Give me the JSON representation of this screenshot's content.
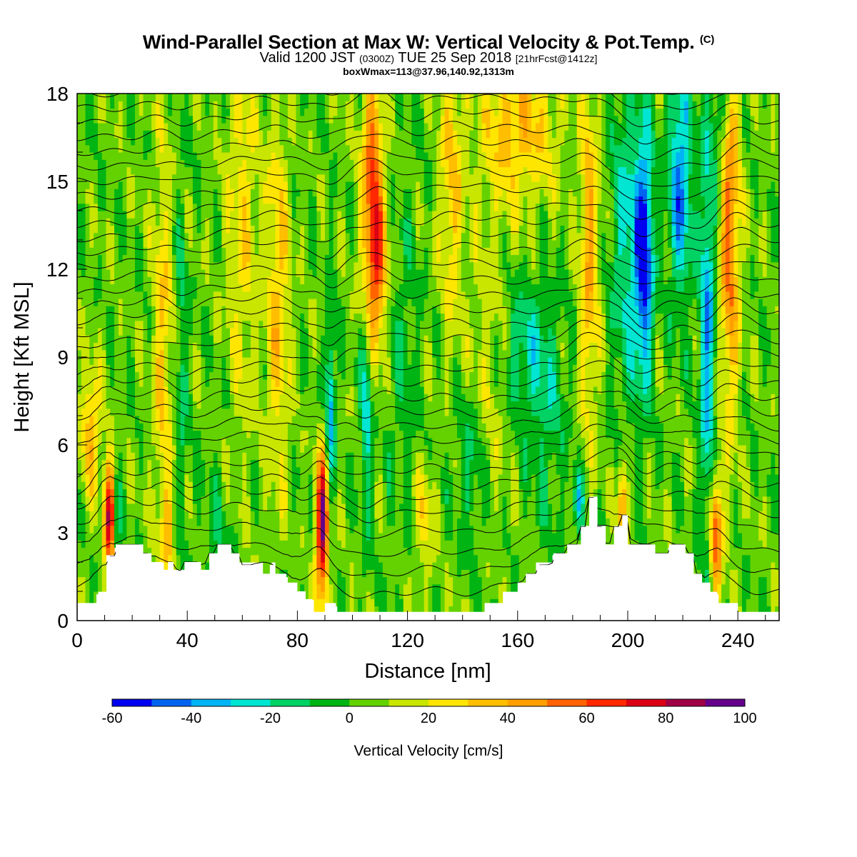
{
  "header": {
    "title": "Wind-Parallel Section at Max W: Vertical Velocity & Pot.Temp.",
    "title_mark": "(C)",
    "valid_time": "Valid 1200 JST",
    "utc_time": "(0300Z)",
    "date": "TUE 25 Sep 2018",
    "forecast_info": "[21hrFcst@1412z]",
    "box_info": "boxWmax=113@37.96,140.92,1313m"
  },
  "chart_data": {
    "type": "heatmap",
    "xlabel": "Distance [nm]",
    "ylabel": "Height [Kft MSL]",
    "xlim": [
      0,
      255
    ],
    "ylim": [
      0,
      18
    ],
    "x_ticks": [
      0,
      40,
      80,
      120,
      160,
      200,
      240
    ],
    "y_ticks": [
      0,
      3,
      6,
      9,
      12,
      15,
      18
    ],
    "colorbar": {
      "label": "Vertical Velocity [cm/s]",
      "levels": [
        -60,
        -50,
        -40,
        -30,
        -20,
        -10,
        0,
        10,
        20,
        30,
        40,
        50,
        60,
        70,
        80,
        90,
        100
      ],
      "tick_labels": [
        "-60",
        "-40",
        "-20",
        "0",
        "20",
        "40",
        "60",
        "80",
        "100"
      ],
      "tick_values": [
        -60,
        -40,
        -20,
        0,
        20,
        40,
        60,
        80,
        100
      ],
      "colors": [
        "#0000f0",
        "#0064f0",
        "#00b4f5",
        "#00e6d2",
        "#00d264",
        "#00b414",
        "#64d200",
        "#c8e600",
        "#ffe600",
        "#ffbe00",
        "#ffa000",
        "#ff6400",
        "#ff2800",
        "#dc0014",
        "#a00046",
        "#64008c"
      ]
    },
    "background_w": 4,
    "terrain_kft": [
      [
        0,
        0.6
      ],
      [
        7,
        0.6
      ],
      [
        7,
        0.9
      ],
      [
        11,
        0.9
      ],
      [
        11,
        2.2
      ],
      [
        14,
        2.2
      ],
      [
        14,
        2.6
      ],
      [
        24,
        2.6
      ],
      [
        24,
        2.3
      ],
      [
        27,
        2.3
      ],
      [
        27,
        2.0
      ],
      [
        31,
        2.0
      ],
      [
        31,
        1.7
      ],
      [
        33,
        1.7
      ],
      [
        33,
        2.0
      ],
      [
        35,
        2.0
      ],
      [
        35,
        1.7
      ],
      [
        39,
        1.7
      ],
      [
        39,
        2.0
      ],
      [
        45,
        2.0
      ],
      [
        45,
        1.7
      ],
      [
        48,
        1.7
      ],
      [
        48,
        2.3
      ],
      [
        51,
        2.3
      ],
      [
        51,
        2.6
      ],
      [
        56,
        2.6
      ],
      [
        56,
        2.3
      ],
      [
        59,
        2.3
      ],
      [
        59,
        1.9
      ],
      [
        67,
        1.9
      ],
      [
        67,
        1.6
      ],
      [
        70,
        1.6
      ],
      [
        70,
        1.9
      ],
      [
        72,
        1.9
      ],
      [
        72,
        1.6
      ],
      [
        76,
        1.6
      ],
      [
        76,
        1.3
      ],
      [
        80,
        1.3
      ],
      [
        80,
        1.0
      ],
      [
        83,
        1.0
      ],
      [
        83,
        0.7
      ],
      [
        86,
        0.7
      ],
      [
        86,
        0.3
      ],
      [
        90,
        0.3
      ],
      [
        90,
        0.6
      ],
      [
        94,
        0.6
      ],
      [
        94,
        0.3
      ],
      [
        148,
        0.3
      ],
      [
        148,
        0.6
      ],
      [
        155,
        0.6
      ],
      [
        155,
        0.9
      ],
      [
        160,
        0.9
      ],
      [
        160,
        1.3
      ],
      [
        163,
        1.3
      ],
      [
        163,
        1.6
      ],
      [
        167,
        1.6
      ],
      [
        167,
        1.9
      ],
      [
        173,
        1.9
      ],
      [
        173,
        2.3
      ],
      [
        178,
        2.3
      ],
      [
        178,
        2.6
      ],
      [
        183,
        2.6
      ],
      [
        183,
        3.2
      ],
      [
        186,
        3.2
      ],
      [
        186,
        4.2
      ],
      [
        189,
        4.2
      ],
      [
        189,
        3.2
      ],
      [
        192,
        3.2
      ],
      [
        192,
        2.6
      ],
      [
        195,
        2.6
      ],
      [
        195,
        3.2
      ],
      [
        198,
        3.2
      ],
      [
        198,
        3.6
      ],
      [
        200,
        3.6
      ],
      [
        200,
        2.6
      ],
      [
        210,
        2.6
      ],
      [
        210,
        2.3
      ],
      [
        215,
        2.3
      ],
      [
        215,
        2.6
      ],
      [
        221,
        2.6
      ],
      [
        221,
        2.3
      ],
      [
        224,
        2.3
      ],
      [
        224,
        1.6
      ],
      [
        227,
        1.6
      ],
      [
        227,
        1.3
      ],
      [
        230,
        1.3
      ],
      [
        230,
        0.9
      ],
      [
        233,
        0.9
      ],
      [
        233,
        0.6
      ],
      [
        240,
        0.6
      ],
      [
        240,
        0.3
      ],
      [
        255,
        0.3
      ]
    ],
    "updrafts": [
      {
        "x": 12,
        "y": 3.5,
        "peak": 80,
        "sx": 1.6,
        "sy": 1.4
      },
      {
        "x": 5,
        "y": 6.5,
        "peak": 35,
        "sx": 2.5,
        "sy": 1.5
      },
      {
        "x": 89,
        "y": 3.2,
        "peak": 90,
        "sx": 1.6,
        "sy": 1.7
      },
      {
        "x": 108,
        "y": 12.5,
        "peak": 70,
        "sx": 3.0,
        "sy": 2.2
      },
      {
        "x": 107,
        "y": 16.5,
        "peak": 40,
        "sx": 2.5,
        "sy": 1.5
      },
      {
        "x": 237,
        "y": 13.5,
        "peak": 50,
        "sx": 2.5,
        "sy": 4.5
      },
      {
        "x": 232,
        "y": 3.0,
        "peak": 60,
        "sx": 1.5,
        "sy": 1.6
      },
      {
        "x": 186,
        "y": 12.5,
        "peak": 35,
        "sx": 2.5,
        "sy": 4.0
      },
      {
        "x": 160,
        "y": 16.8,
        "peak": 32,
        "sx": 10,
        "sy": 1.8
      },
      {
        "x": 73,
        "y": 11.0,
        "peak": 30,
        "sx": 3.0,
        "sy": 4.5
      },
      {
        "x": 31,
        "y": 9.5,
        "peak": 26,
        "sx": 2.5,
        "sy": 5.0
      },
      {
        "x": 136,
        "y": 15.0,
        "peak": 26,
        "sx": 3.0,
        "sy": 3.5
      },
      {
        "x": 198,
        "y": 4.0,
        "peak": 45,
        "sx": 1.2,
        "sy": 1.2
      },
      {
        "x": 60,
        "y": 14.0,
        "peak": 22,
        "sx": 4.0,
        "sy": 5.0
      },
      {
        "x": 150,
        "y": 9.0,
        "peak": 20,
        "sx": 6.0,
        "sy": 3.0
      },
      {
        "x": 33,
        "y": 3.0,
        "peak": 26,
        "sx": 1.5,
        "sy": 1.2
      },
      {
        "x": 126,
        "y": 3.5,
        "peak": 22,
        "sx": 2.5,
        "sy": 1.5
      }
    ],
    "downdrafts": [
      {
        "x": 206,
        "y": 12.5,
        "peak": -60,
        "sx": 2.2,
        "sy": 2.8
      },
      {
        "x": 219,
        "y": 15.0,
        "peak": -45,
        "sx": 3.0,
        "sy": 2.8
      },
      {
        "x": 229,
        "y": 10.0,
        "peak": -40,
        "sx": 2.0,
        "sy": 5.0
      },
      {
        "x": 200,
        "y": 13.0,
        "peak": -28,
        "sx": 4.0,
        "sy": 4.0
      },
      {
        "x": 14,
        "y": 3.0,
        "peak": -38,
        "sx": 1.2,
        "sy": 1.5
      },
      {
        "x": 92,
        "y": 7.5,
        "peak": -38,
        "sx": 1.2,
        "sy": 2.2
      },
      {
        "x": 105,
        "y": 7.5,
        "peak": -30,
        "sx": 1.5,
        "sy": 3.0
      },
      {
        "x": 160,
        "y": 9.3,
        "peak": -22,
        "sx": 8.0,
        "sy": 1.7
      },
      {
        "x": 143,
        "y": 5.5,
        "peak": -18,
        "sx": 4.0,
        "sy": 2.0
      },
      {
        "x": 38,
        "y": 9.0,
        "peak": -18,
        "sx": 1.5,
        "sy": 4.0
      },
      {
        "x": 182,
        "y": 4.0,
        "peak": -30,
        "sx": 1.5,
        "sy": 0.8
      },
      {
        "x": 234,
        "y": 17.5,
        "peak": -28,
        "sx": 2.0,
        "sy": 1.5
      },
      {
        "x": 118,
        "y": 9.0,
        "peak": -12,
        "sx": 4.0,
        "sy": 4.0
      },
      {
        "x": 50,
        "y": 3.0,
        "peak": -12,
        "sx": 4.0,
        "sy": 1.5
      },
      {
        "x": 170,
        "y": 7.0,
        "peak": -15,
        "sx": 5.0,
        "sy": 2.5
      }
    ],
    "isentrope_heights_kft": [
      0.8,
      1.5,
      2.2,
      2.9,
      3.5,
      4.0,
      4.5,
      5.0,
      5.5,
      6.0,
      6.5,
      7.0,
      7.5,
      8.0,
      8.5,
      9.0,
      9.5,
      10.0,
      10.5,
      11.0,
      11.5,
      12.0,
      12.5,
      13.0,
      13.5,
      14.0,
      14.5,
      15.0,
      15.5,
      16.0,
      16.5,
      17.0,
      17.5,
      18.0,
      18.5,
      19.0,
      19.5,
      20.0
    ]
  }
}
